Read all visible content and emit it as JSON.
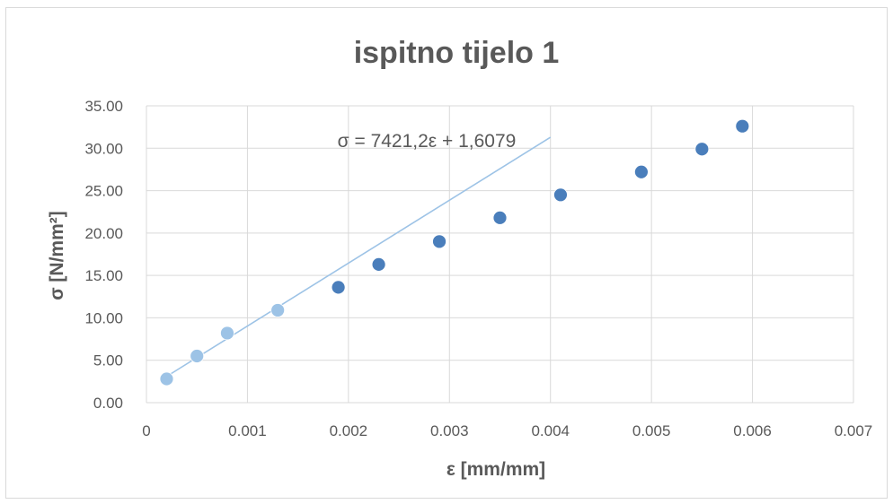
{
  "chart_data": {
    "type": "scatter",
    "title": "ispitno tijelo 1",
    "xlabel": "ε [mm/mm]",
    "ylabel": "σ [N/mm²]",
    "xlim": [
      0,
      0.007
    ],
    "ylim": [
      0,
      35
    ],
    "x_ticks": [
      "0",
      "0.001",
      "0.002",
      "0.003",
      "0.004",
      "0.005",
      "0.006",
      "0.007"
    ],
    "y_ticks": [
      "0.00",
      "5.00",
      "10.00",
      "15.00",
      "20.00",
      "25.00",
      "30.00",
      "35.00"
    ],
    "grid": true,
    "series": [
      {
        "color": "#9dc3e6",
        "points": [
          {
            "x": 0.0002,
            "y": 2.8
          },
          {
            "x": 0.0005,
            "y": 5.5
          },
          {
            "x": 0.0008,
            "y": 8.2
          },
          {
            "x": 0.0013,
            "y": 10.9
          }
        ]
      },
      {
        "color": "#4a7ebb",
        "points": [
          {
            "x": 0.0019,
            "y": 13.6
          },
          {
            "x": 0.0023,
            "y": 16.3
          },
          {
            "x": 0.0029,
            "y": 19.0
          },
          {
            "x": 0.0035,
            "y": 21.8
          },
          {
            "x": 0.0041,
            "y": 24.5
          },
          {
            "x": 0.0049,
            "y": 27.2
          },
          {
            "x": 0.0055,
            "y": 29.9
          },
          {
            "x": 0.0059,
            "y": 32.6
          }
        ]
      }
    ],
    "trendline": {
      "slope": 7421.2,
      "intercept": 1.6079,
      "x_range": [
        0.0002,
        0.004
      ],
      "color": "#9dc3e6",
      "equation": "σ = 7421,2ε + 1,6079"
    }
  }
}
